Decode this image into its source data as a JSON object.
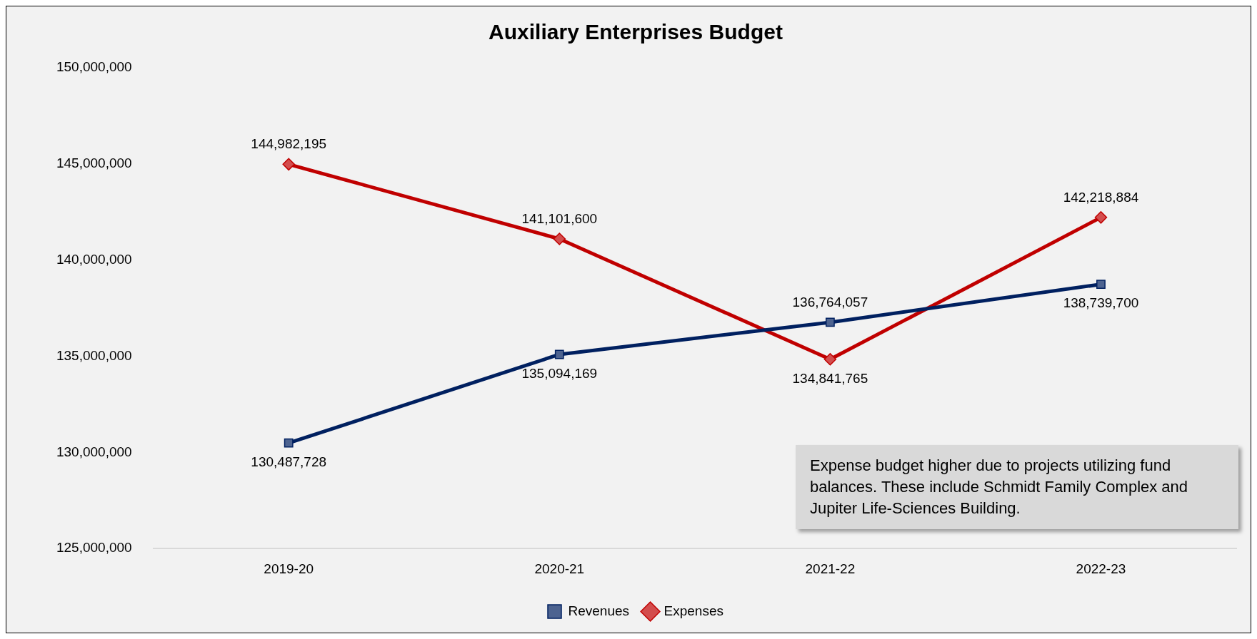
{
  "chart_data": {
    "type": "line",
    "title": "Auxiliary Enterprises Budget",
    "categories": [
      "2019-20",
      "2020-21",
      "2021-22",
      "2022-23"
    ],
    "series": [
      {
        "name": "Revenues",
        "color": "#002060",
        "marker": "square",
        "values": [
          130487728,
          135094169,
          136764057,
          138739700
        ],
        "value_labels": [
          "130,487,728",
          "135,094,169",
          "136,764,057",
          "138,739,700"
        ]
      },
      {
        "name": "Expenses",
        "color": "#c00000",
        "marker": "diamond",
        "values": [
          144982195,
          141101600,
          134841765,
          142218884
        ],
        "value_labels": [
          "144,982,195",
          "141,101,600",
          "134,841,765",
          "142,218,884"
        ]
      }
    ],
    "ylim": [
      125000000,
      150000000
    ],
    "yticks": [
      {
        "value": 125000000,
        "label": "125,000,000"
      },
      {
        "value": 130000000,
        "label": "130,000,000"
      },
      {
        "value": 135000000,
        "label": "135,000,000"
      },
      {
        "value": 140000000,
        "label": "140,000,000"
      },
      {
        "value": 145000000,
        "label": "145,000,000"
      },
      {
        "value": 150000000,
        "label": "150,000,000"
      }
    ],
    "grid": false,
    "legend": "bottom",
    "line_style": "solid",
    "annotations": [
      "Expense budget higher due to projects utilizing fund balances. These include Schmidt Family Complex and Jupiter Life-Sciences Building."
    ]
  }
}
